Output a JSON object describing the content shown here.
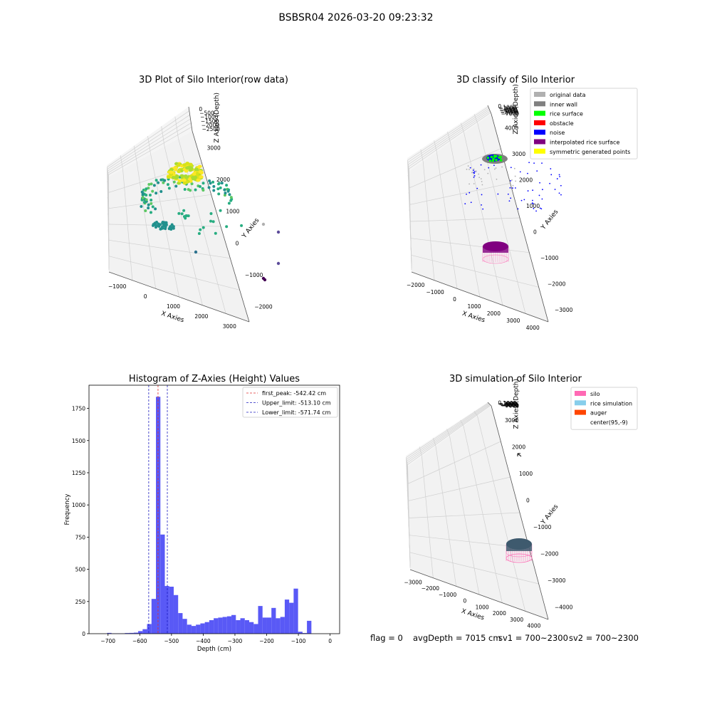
{
  "figure": {
    "title": "BSBSR04 2026-03-20 09:23:32",
    "status": {
      "flag": "flag = 0",
      "avg_depth": "avgDepth = 7015 cm",
      "sv1": "sv1 = 700~2300",
      "sv2": "sv2 = 700~2300"
    }
  },
  "colors": {
    "histogram_bar": "#5050f5",
    "first_peak_line": "#e03030",
    "limit_lines": "#2020c0",
    "silo": "#ff69b4",
    "rice_simulation": "#87ceeb",
    "auger": "#ff4500",
    "original_data": "#b0b0b0",
    "inner_wall": "#808080",
    "rice_surface": "#00ff00",
    "obstacle": "#ff0000",
    "noise": "#0000ff",
    "interpolated_rice_surface": "#800080",
    "symmetric_generated_points": "#ffff00"
  },
  "chart_data": [
    {
      "type": "scatter",
      "title": "3D Plot of Silo Interior(row data)",
      "xlabel": "X Axies",
      "ylabel": "Y Axies",
      "zlabel": "Z Axies (Depth)",
      "x_ticks": [
        "−1000",
        "0",
        "1000",
        "2000",
        "3000"
      ],
      "y_ticks": [
        "−2000",
        "−1000",
        "0",
        "1000",
        "2000",
        "3000"
      ],
      "z_ticks": [
        "0",
        "−500",
        "−1000",
        "−1500",
        "−2000",
        "−2500"
      ],
      "colormap": "viridis"
    },
    {
      "type": "scatter",
      "title": "3D classify of Silo Interior",
      "xlabel": "X Axies",
      "ylabel": "Y Axies",
      "zlabel": "Z Axies (Depth)",
      "x_ticks": [
        "−2000",
        "−1000",
        "0",
        "1000",
        "2000",
        "3000",
        "4000"
      ],
      "y_ticks": [
        "−3000",
        "−2000",
        "−1000",
        "0",
        "1000",
        "2000",
        "3000",
        "4000"
      ],
      "z_ticks": [
        "0",
        "−1000",
        "−2000",
        "−3000",
        "−4000",
        "−5000",
        "−6000",
        "−7000"
      ],
      "legend": [
        "original data",
        "inner wall",
        "rice surface",
        "obstacle",
        "noise",
        "interpolated rice surface",
        "symmetric generated points"
      ],
      "legend_loc": "upper-right"
    },
    {
      "type": "bar",
      "title": "Histogram of Z-Axies (Height) Values",
      "xlabel": "Depth (cm)",
      "ylabel": "Frequency",
      "xlim": [
        -760,
        30
      ],
      "ylim": [
        0,
        1930
      ],
      "x_ticks": [
        -700,
        -600,
        -500,
        -400,
        -300,
        -200,
        -100,
        0
      ],
      "x_tick_labels": [
        "−700",
        "−600",
        "−500",
        "−400",
        "−300",
        "−200",
        "−100",
        "0"
      ],
      "y_ticks": [
        0,
        250,
        500,
        750,
        1000,
        1250,
        1500,
        1750
      ],
      "bin_width": 14,
      "bin_edges_start": -703,
      "values": [
        6,
        2,
        2,
        2,
        5,
        6,
        8,
        20,
        35,
        75,
        270,
        1840,
        770,
        370,
        365,
        300,
        160,
        115,
        70,
        60,
        70,
        80,
        90,
        105,
        120,
        125,
        130,
        135,
        145,
        105,
        120,
        105,
        90,
        75,
        215,
        125,
        125,
        200,
        120,
        130,
        265,
        240,
        350,
        15,
        5,
        100
      ],
      "lines": [
        {
          "label": "first_peak: -542.42 cm",
          "x": -542.42,
          "style": "dashed",
          "color": "red"
        },
        {
          "label": "Upper_limit: -513.10 cm",
          "x": -513.1,
          "style": "dashed",
          "color": "blue"
        },
        {
          "label": "Lower_limit: -571.74 cm",
          "x": -571.74,
          "style": "dashed",
          "color": "blue"
        }
      ],
      "legend_loc": "upper-right"
    },
    {
      "type": "scatter",
      "title": "3D simulation of Silo Interior",
      "xlabel": "X Axies",
      "ylabel": "Y Axies",
      "zlabel": "Z Axies (Depth)",
      "x_ticks": [
        "−3000",
        "−2000",
        "−1000",
        "0",
        "1000",
        "2000",
        "3000",
        "4000"
      ],
      "y_ticks": [
        "−4000",
        "−3000",
        "−2000",
        "−1000",
        "0",
        "1000",
        "2000",
        "3000"
      ],
      "z_ticks": [
        "0",
        "−1000",
        "−2000",
        "−3000",
        "−4000",
        "−5000",
        "−6000",
        "−7000"
      ],
      "legend": [
        "silo",
        "rice simulation",
        "auger",
        "center(95,-9)"
      ],
      "legend_loc": "upper-right"
    }
  ]
}
